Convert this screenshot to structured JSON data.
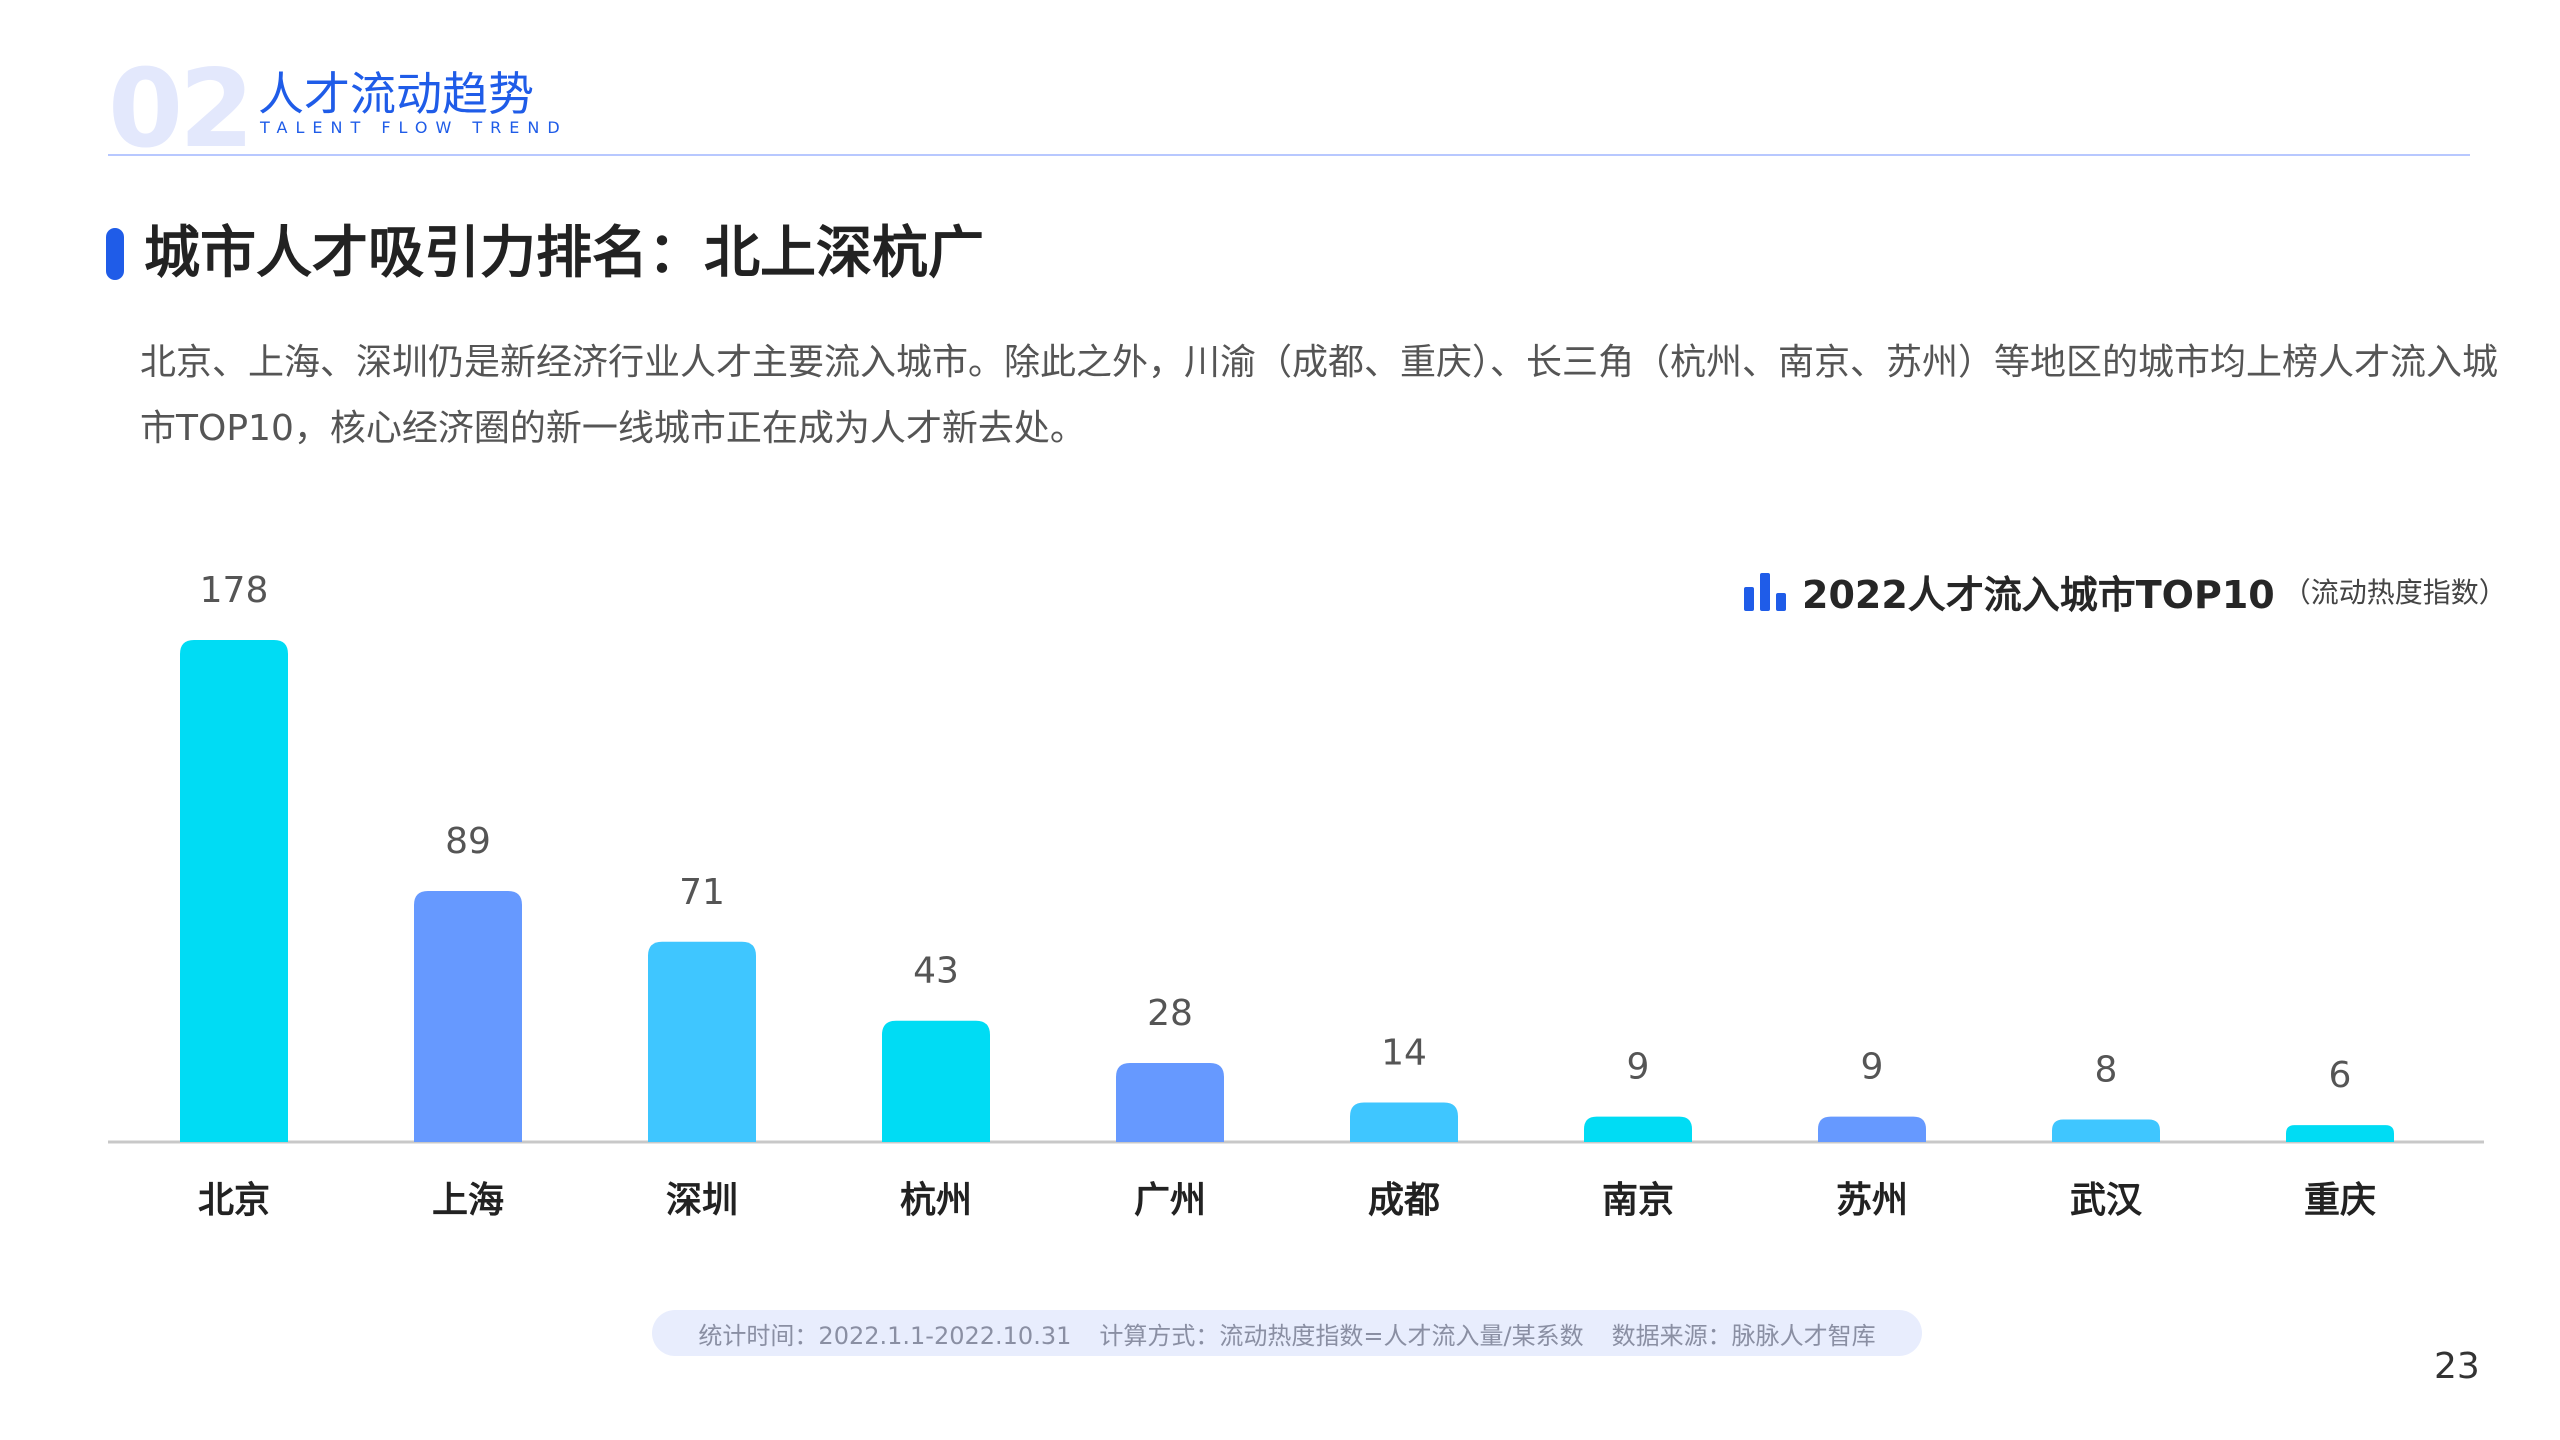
{
  "header": {
    "section_number": "02",
    "section_title": "人才流动趋势",
    "section_subtitle": "TALENT FLOW TREND"
  },
  "heading": "城市人才吸引力排名：北上深杭广",
  "description": "北京、上海、深圳仍是新经济行业人才主要流入城市。除此之外，川渝（成都、重庆）、长三角（杭州、南京、苏州）等地区的城市均上榜人才流入城市TOP10，核心经济圈的新一线城市正在成为人才新去处。",
  "legend": {
    "icon": "bar-chart-icon",
    "title": "2022人才流入城市TOP10",
    "note": "（流动热度指数）"
  },
  "colors": {
    "accent": "#1f5ce8",
    "cyan": "#00dcf4",
    "blue": "#6699ff",
    "sky": "#3fc6ff",
    "axis": "#c8c8c8"
  },
  "chart_data": {
    "type": "bar",
    "title": "2022人才流入城市TOP10",
    "subtitle": "（流动热度指数）",
    "categories": [
      "北京",
      "上海",
      "深圳",
      "杭州",
      "广州",
      "成都",
      "南京",
      "苏州",
      "武汉",
      "重庆"
    ],
    "values": [
      178,
      89,
      71,
      43,
      28,
      14,
      9,
      9,
      8,
      6
    ],
    "bar_colors": [
      "#00dcf4",
      "#6699ff",
      "#3fc6ff",
      "#00dcf4",
      "#6699ff",
      "#3fc6ff",
      "#00dcf4",
      "#6699ff",
      "#3fc6ff",
      "#00dcf4"
    ],
    "ylim": [
      0,
      178
    ],
    "grid": false,
    "legend_position": "top-right"
  },
  "footer": {
    "stat_time": "统计时间：2022.1.1-2022.10.31",
    "method": "计算方式：流动热度指数=人才流入量/某系数",
    "source": "数据来源：脉脉人才智库"
  },
  "page_number": "23"
}
